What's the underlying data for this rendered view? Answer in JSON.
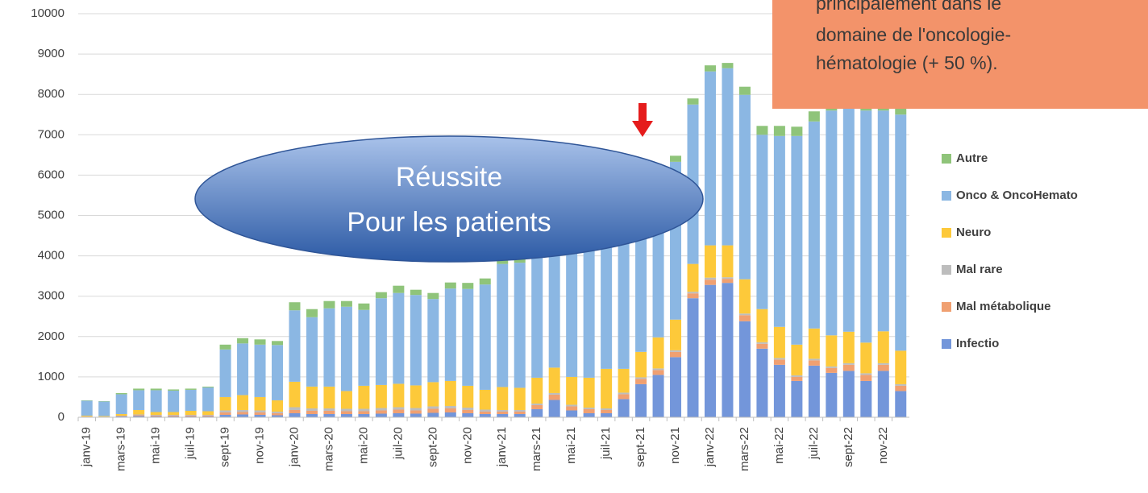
{
  "chart_data": {
    "type": "stacked_bar",
    "categories": [
      "janv-19",
      null,
      "mars-19",
      null,
      "mai-19",
      null,
      "juil-19",
      null,
      "sept-19",
      null,
      "nov-19",
      null,
      "janv-20",
      null,
      "mars-20",
      null,
      "mai-20",
      null,
      "juil-20",
      null,
      "sept-20",
      null,
      "nov-20",
      null,
      "janv-21",
      null,
      "mars-21",
      null,
      "mai-21",
      null,
      "juil-21",
      null,
      "sept-21",
      null,
      "nov-21",
      null,
      "janv-22",
      null,
      "mars-22",
      null,
      "mai-22",
      null,
      "juil-22",
      null,
      "sept-22",
      null,
      "nov-22",
      null
    ],
    "series": [
      {
        "name": "Infectio",
        "color": "#7396da",
        "values": [
          10,
          5,
          20,
          30,
          20,
          20,
          20,
          20,
          60,
          70,
          60,
          50,
          100,
          80,
          80,
          80,
          80,
          90,
          100,
          90,
          110,
          120,
          100,
          80,
          80,
          80,
          200,
          430,
          170,
          100,
          100,
          450,
          820,
          1050,
          1490,
          2950,
          3280,
          3330,
          2380,
          1700,
          1300,
          900,
          1280,
          1100,
          1150,
          900,
          1150,
          650
        ]
      },
      {
        "name": "Mal métabolique",
        "color": "#f0a071",
        "values": [
          5,
          5,
          10,
          20,
          20,
          20,
          20,
          20,
          60,
          60,
          60,
          50,
          80,
          80,
          80,
          70,
          70,
          80,
          90,
          80,
          100,
          100,
          80,
          60,
          60,
          60,
          100,
          130,
          100,
          100,
          80,
          120,
          130,
          120,
          130,
          120,
          130,
          100,
          150,
          120,
          130,
          100,
          130,
          120,
          150,
          150,
          150,
          130
        ]
      },
      {
        "name": "Mal rare",
        "color": "#bdbdbd",
        "values": [
          5,
          5,
          10,
          20,
          20,
          20,
          20,
          20,
          50,
          50,
          50,
          40,
          70,
          60,
          60,
          60,
          60,
          60,
          60,
          60,
          60,
          60,
          60,
          50,
          40,
          40,
          40,
          40,
          40,
          40,
          40,
          40,
          40,
          40,
          40,
          40,
          50,
          40,
          40,
          40,
          40,
          40,
          40,
          40,
          40,
          40,
          40,
          40
        ]
      },
      {
        "name": "Neuro",
        "color": "#fdc93a",
        "values": [
          20,
          15,
          40,
          110,
          70,
          70,
          100,
          90,
          330,
          370,
          330,
          280,
          630,
          540,
          540,
          440,
          570,
          570,
          580,
          560,
          600,
          620,
          540,
          490,
          570,
          550,
          640,
          630,
          690,
          740,
          980,
          590,
          630,
          770,
          760,
          690,
          800,
          790,
          850,
          820,
          770,
          760,
          750,
          770,
          780,
          760,
          790,
          830
        ]
      },
      {
        "name": "Onco & OncoHemato",
        "color": "#8bb7e3",
        "values": [
          370,
          360,
          490,
          490,
          540,
          530,
          520,
          590,
          1180,
          1280,
          1300,
          1370,
          1770,
          1720,
          1940,
          2090,
          1880,
          2150,
          2250,
          2240,
          2060,
          2290,
          2400,
          2610,
          3050,
          3100,
          3070,
          2920,
          3250,
          3370,
          3350,
          3650,
          3830,
          3870,
          3910,
          3950,
          4310,
          4390,
          4570,
          4320,
          4730,
          5170,
          5130,
          5570,
          5580,
          5750,
          5470,
          5850
        ]
      },
      {
        "name": "Autre",
        "color": "#8fc47a",
        "values": [
          10,
          10,
          30,
          40,
          40,
          30,
          30,
          20,
          120,
          130,
          130,
          100,
          200,
          200,
          180,
          140,
          160,
          150,
          180,
          130,
          150,
          150,
          150,
          150,
          150,
          150,
          150,
          150,
          150,
          150,
          150,
          150,
          150,
          150,
          150,
          150,
          150,
          130,
          200,
          220,
          250,
          230,
          250,
          200,
          200,
          200,
          200,
          200
        ]
      }
    ],
    "ylim": [
      0,
      10000
    ],
    "yticks": [
      0,
      1000,
      2000,
      3000,
      4000,
      5000,
      6000,
      7000,
      8000,
      9000,
      10000
    ],
    "grid": true,
    "annotations": {
      "ellipse": [
        "Réussite",
        "Pour les patients"
      ],
      "box": [
        "principalement dans le",
        "domaine de l'oncologie-",
        "hématologie (+ 50 %)."
      ]
    }
  }
}
